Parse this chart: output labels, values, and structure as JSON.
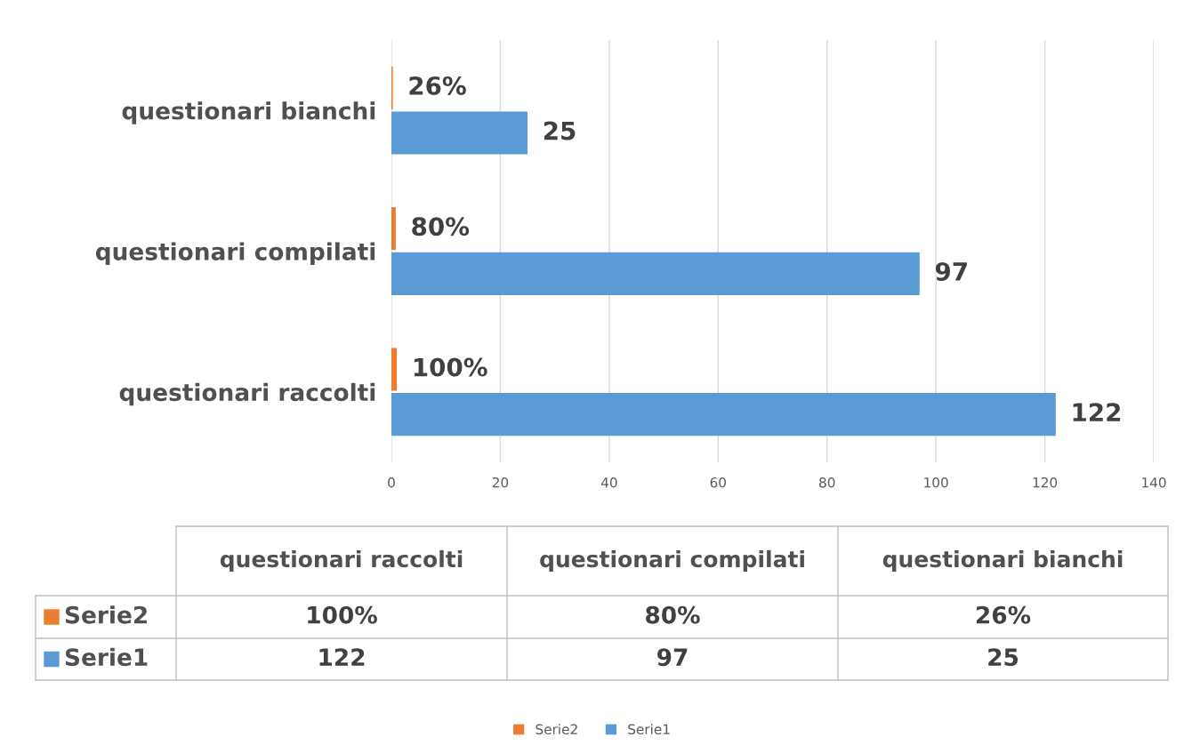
{
  "chart_data": {
    "type": "bar",
    "orientation": "horizontal",
    "categories": [
      "questionari bianchi",
      "questionari compilati",
      "questionari raccolti"
    ],
    "series": [
      {
        "name": "Serie2",
        "color": "#ed7d31",
        "values": [
          0.26,
          0.8,
          1
        ],
        "value_labels": [
          "26%",
          "80%",
          "100%"
        ]
      },
      {
        "name": "Serie1",
        "color": "#5b9bd5",
        "values": [
          25,
          97,
          122
        ],
        "value_labels": [
          "25",
          "97",
          "122"
        ]
      }
    ],
    "xlim": [
      0,
      140
    ],
    "xticks": [
      0,
      20,
      40,
      60,
      80,
      100,
      120,
      140
    ],
    "grid": "x",
    "legend": "bottom"
  }
}
